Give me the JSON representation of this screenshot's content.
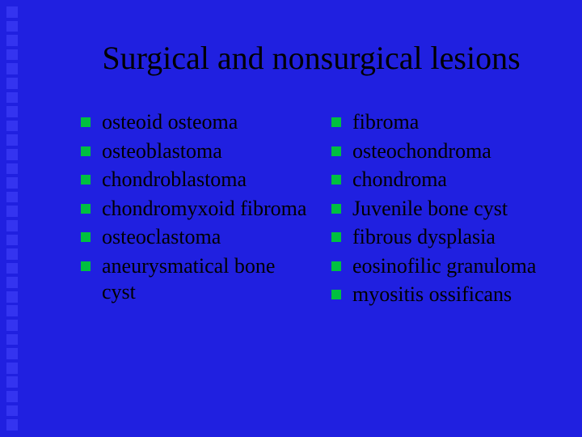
{
  "background_color": "#2020e0",
  "decor_color": "#3434f0",
  "bullet_color": "#00c040",
  "text_color": "#000000",
  "title_color": "#000000",
  "title_fontsize": 40,
  "body_fontsize": 26,
  "title": "Surgical and nonsurgical lesions",
  "left_column": [
    "osteoid osteoma",
    "osteoblastoma",
    "chondroblastoma",
    "chondromyxoid fibroma",
    "osteoclastoma",
    "aneurysmatical bone cyst"
  ],
  "right_column": [
    "fibroma",
    "osteochondroma",
    "chondroma",
    "Juvenile bone cyst",
    "fibrous dysplasia",
    "eosinofilic granuloma",
    "myositis ossificans"
  ]
}
